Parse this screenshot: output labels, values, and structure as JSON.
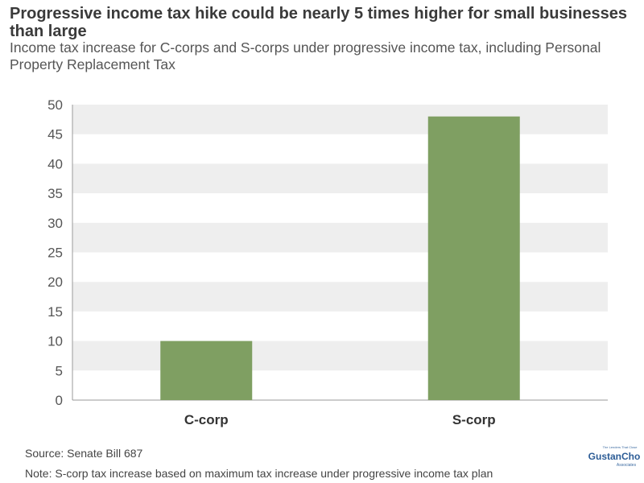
{
  "title": "Progressive income tax hike could be nearly 5 times higher for small businesses than large",
  "subtitle": "Income tax increase for C-corps and S-corps under progressive income tax, including Personal Property Replacement Tax",
  "source": "Source: Senate Bill 687",
  "note": "Note: S-corp tax increase based on maximum tax increase under progressive income tax plan",
  "logo": {
    "tagline": "The Lenders That Close",
    "name": "GustanCho",
    "sub": "Associates"
  },
  "colors": {
    "bar": "#7f9f62",
    "band": "#eeeeee",
    "axis": "#999999"
  },
  "chart_data": {
    "type": "bar",
    "title": "",
    "xlabel": "",
    "ylabel": "",
    "categories": [
      "C-corp",
      "S-corp"
    ],
    "values": [
      10,
      48
    ],
    "ylim": [
      0,
      50
    ],
    "yticks": [
      0,
      5,
      10,
      15,
      20,
      25,
      30,
      35,
      40,
      45,
      50
    ],
    "grid": "alternating horizontal bands",
    "legend": "none"
  }
}
